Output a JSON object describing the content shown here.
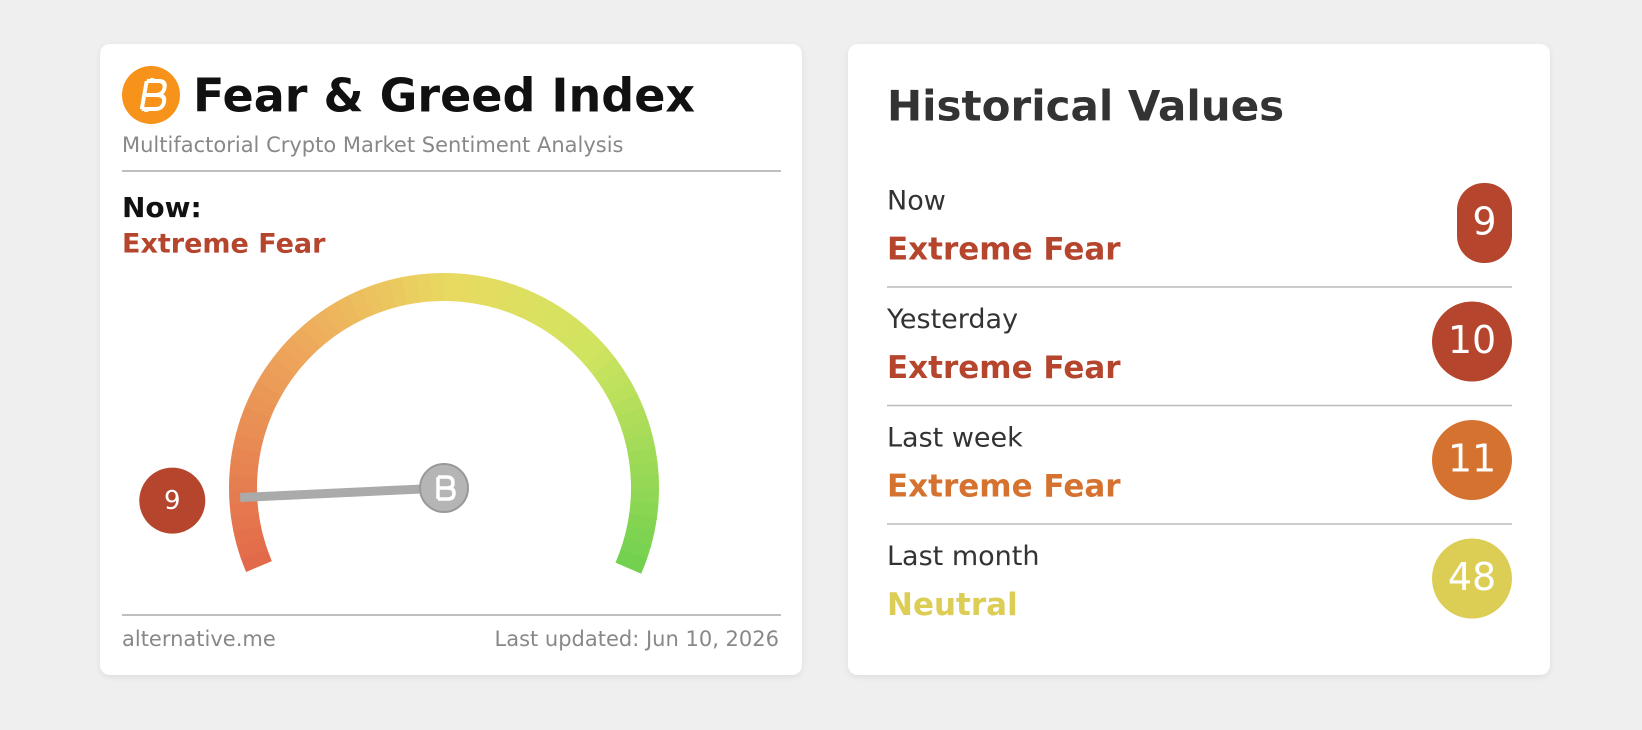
{
  "header": {
    "title": "Fear & Greed Index",
    "subtitle": "Multifactorial Crypto Market Sentiment Analysis"
  },
  "now": {
    "label": "Now:",
    "classification": "Extreme Fear"
  },
  "gauge": {
    "value": 9,
    "range": [
      0,
      100
    ]
  },
  "footer": {
    "source": "alternative.me",
    "updated": "Last updated: Jun 10, 2026"
  },
  "historical": {
    "title": "Historical Values",
    "rows": [
      {
        "label": "Now",
        "classification": "Extreme Fear",
        "value": 9,
        "color": "#b5452d"
      },
      {
        "label": "Yesterday",
        "classification": "Extreme Fear",
        "value": 10,
        "color": "#b5452d"
      },
      {
        "label": "Last week",
        "classification": "Extreme Fear",
        "value": 11,
        "color": "#d6722f"
      },
      {
        "label": "Last month",
        "classification": "Neutral",
        "value": 48,
        "color": "#dccd55"
      }
    ]
  }
}
